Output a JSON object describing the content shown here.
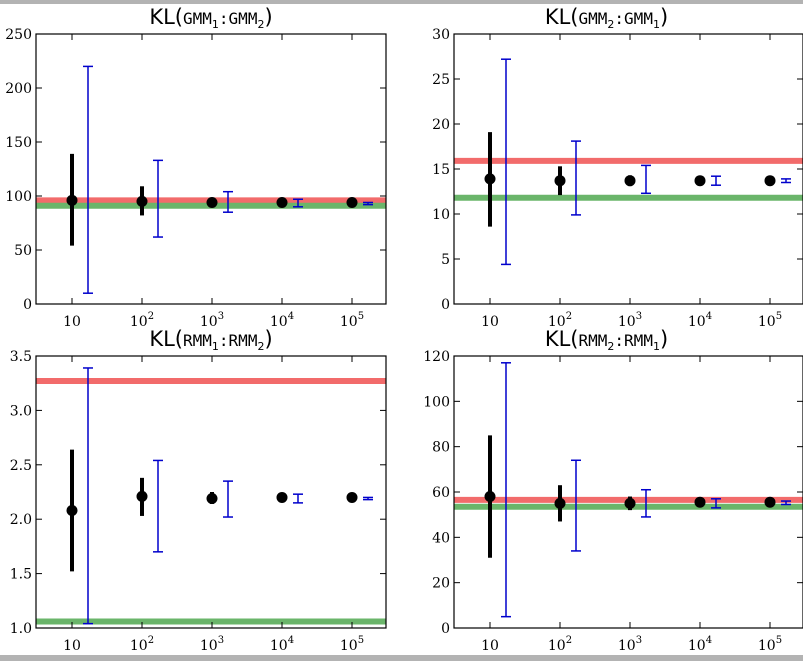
{
  "chart_data": [
    {
      "type": "scatter",
      "title_prefix": "KL(",
      "title_a": "GMM",
      "title_a_sub": "1",
      "title_sep": ":",
      "title_b": "GMM",
      "title_b_sub": "2",
      "title_suffix": ")",
      "xscale": "log",
      "x": [
        10,
        100,
        1000,
        10000,
        100000
      ],
      "xtick_labels": [
        [
          "10",
          ""
        ],
        [
          "10",
          "2"
        ],
        [
          "10",
          "3"
        ],
        [
          "10",
          "4"
        ],
        [
          "10",
          "5"
        ]
      ],
      "ylim": [
        0,
        250
      ],
      "yticks": [
        0,
        50,
        100,
        150,
        200,
        250
      ],
      "ytick_labels": [
        "0",
        "50",
        "100",
        "150",
        "200",
        "250"
      ],
      "hlines": [
        {
          "y": 96,
          "color": "#f26b6b"
        },
        {
          "y": 91,
          "color": "#6ab56a"
        }
      ],
      "series": [
        {
          "color": "#000000",
          "marker": "circle",
          "y": [
            96,
            95,
            94,
            94,
            94
          ],
          "yerr_low": [
            54,
            82,
            90,
            92,
            93
          ],
          "yerr_high": [
            139,
            109,
            98,
            96,
            95
          ]
        },
        {
          "color": "#0000cc",
          "marker": "none",
          "y": [
            114,
            97,
            94,
            93,
            93
          ],
          "yerr_low": [
            10,
            62,
            85,
            90,
            92
          ],
          "yerr_high": [
            220,
            133,
            104,
            97,
            94
          ]
        }
      ]
    },
    {
      "type": "scatter",
      "title_prefix": "KL(",
      "title_a": "GMM",
      "title_a_sub": "2",
      "title_sep": ":",
      "title_b": "GMM",
      "title_b_sub": "1",
      "title_suffix": ")",
      "xscale": "log",
      "x": [
        10,
        100,
        1000,
        10000,
        100000
      ],
      "xtick_labels": [
        [
          "10",
          ""
        ],
        [
          "10",
          "2"
        ],
        [
          "10",
          "3"
        ],
        [
          "10",
          "4"
        ],
        [
          "10",
          "5"
        ]
      ],
      "ylim": [
        0,
        30
      ],
      "yticks": [
        0,
        5,
        10,
        15,
        20,
        25,
        30
      ],
      "ytick_labels": [
        "0",
        "5",
        "10",
        "15",
        "20",
        "25",
        "30"
      ],
      "hlines": [
        {
          "y": 15.9,
          "color": "#f26b6b"
        },
        {
          "y": 11.8,
          "color": "#6ab56a"
        }
      ],
      "series": [
        {
          "color": "#000000",
          "marker": "circle",
          "y": [
            13.9,
            13.7,
            13.7,
            13.7,
            13.7
          ],
          "yerr_low": [
            8.6,
            12.1,
            13.1,
            13.4,
            13.6
          ],
          "yerr_high": [
            19.1,
            15.3,
            14.3,
            14.0,
            13.8
          ]
        },
        {
          "color": "#0000cc",
          "marker": "none",
          "y": [
            15.8,
            14.0,
            13.9,
            13.7,
            13.7
          ],
          "yerr_low": [
            4.4,
            9.9,
            12.3,
            13.2,
            13.5
          ],
          "yerr_high": [
            27.2,
            18.1,
            15.4,
            14.2,
            13.9
          ]
        }
      ]
    },
    {
      "type": "scatter",
      "title_prefix": "KL(",
      "title_a": "RMM",
      "title_a_sub": "1",
      "title_sep": ":",
      "title_b": "RMM",
      "title_b_sub": "2",
      "title_suffix": ")",
      "xscale": "log",
      "x": [
        10,
        100,
        1000,
        10000,
        100000
      ],
      "xtick_labels": [
        [
          "10",
          ""
        ],
        [
          "10",
          "2"
        ],
        [
          "10",
          "3"
        ],
        [
          "10",
          "4"
        ],
        [
          "10",
          "5"
        ]
      ],
      "ylim": [
        1.0,
        3.5
      ],
      "yticks": [
        1.0,
        1.5,
        2.0,
        2.5,
        3.0,
        3.5
      ],
      "ytick_labels": [
        "1.0",
        "1.5",
        "2.0",
        "2.5",
        "3.0",
        "3.5"
      ],
      "hlines": [
        {
          "y": 3.27,
          "color": "#f26b6b"
        },
        {
          "y": 1.06,
          "color": "#6ab56a"
        }
      ],
      "series": [
        {
          "color": "#000000",
          "marker": "circle",
          "y": [
            2.08,
            2.21,
            2.19,
            2.2,
            2.2
          ],
          "yerr_low": [
            1.52,
            2.03,
            2.14,
            2.17,
            2.19
          ],
          "yerr_high": [
            2.64,
            2.38,
            2.25,
            2.22,
            2.21
          ]
        },
        {
          "color": "#0000cc",
          "marker": "none",
          "y": [
            2.2,
            2.12,
            2.18,
            2.19,
            2.19
          ],
          "yerr_low": [
            1.04,
            1.7,
            2.02,
            2.15,
            2.18
          ],
          "yerr_high": [
            3.39,
            2.54,
            2.35,
            2.23,
            2.2
          ]
        }
      ]
    },
    {
      "type": "scatter",
      "title_prefix": "KL(",
      "title_a": "RMM",
      "title_a_sub": "2",
      "title_sep": ":",
      "title_b": "RMM",
      "title_b_sub": "1",
      "title_suffix": ")",
      "xscale": "log",
      "x": [
        10,
        100,
        1000,
        10000,
        100000
      ],
      "xtick_labels": [
        [
          "10",
          ""
        ],
        [
          "10",
          "2"
        ],
        [
          "10",
          "3"
        ],
        [
          "10",
          "4"
        ],
        [
          "10",
          "5"
        ]
      ],
      "ylim": [
        0,
        120
      ],
      "yticks": [
        0,
        20,
        40,
        60,
        80,
        100,
        120
      ],
      "ytick_labels": [
        "0",
        "20",
        "40",
        "60",
        "80",
        "100",
        "120"
      ],
      "hlines": [
        {
          "y": 56.5,
          "color": "#f26b6b"
        },
        {
          "y": 53.5,
          "color": "#6ab56a"
        }
      ],
      "series": [
        {
          "color": "#000000",
          "marker": "circle",
          "y": [
            58,
            55,
            55,
            55.5,
            55.5
          ],
          "yerr_low": [
            31,
            47,
            52,
            54,
            55
          ],
          "yerr_high": [
            85,
            63,
            58,
            57,
            56
          ]
        },
        {
          "color": "#0000cc",
          "marker": "none",
          "y": [
            61,
            54,
            55,
            55,
            55
          ],
          "yerr_low": [
            5,
            34,
            49,
            53,
            54.5
          ],
          "yerr_high": [
            117,
            74,
            61,
            57,
            56
          ]
        }
      ]
    }
  ]
}
